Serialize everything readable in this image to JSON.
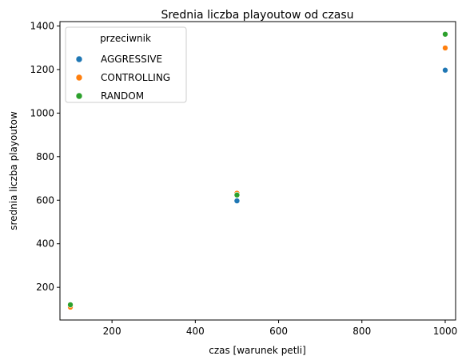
{
  "chart_data": {
    "type": "scatter",
    "title": "Srednia liczba playoutow od czasu",
    "xlabel": "czas [warunek petli]",
    "ylabel": "srednia liczba playoutow",
    "xlim": [
      75,
      1025
    ],
    "ylim": [
      50,
      1420
    ],
    "xticks": [
      200,
      400,
      600,
      800,
      1000
    ],
    "yticks": [
      200,
      400,
      600,
      800,
      1000,
      1200,
      1400
    ],
    "grid": false,
    "legend": {
      "title": "przeciwnik",
      "placement": "top-left"
    },
    "series": [
      {
        "name": "AGGRESSIVE",
        "color": "#1f77b4",
        "points": [
          {
            "x": 100,
            "y": 118
          },
          {
            "x": 500,
            "y": 597
          },
          {
            "x": 1000,
            "y": 1197
          }
        ]
      },
      {
        "name": "CONTROLLING",
        "color": "#ff7f0e",
        "points": [
          {
            "x": 100,
            "y": 109
          },
          {
            "x": 500,
            "y": 632
          },
          {
            "x": 1000,
            "y": 1299
          }
        ]
      },
      {
        "name": "RANDOM",
        "color": "#2ca02c",
        "points": [
          {
            "x": 100,
            "y": 120
          },
          {
            "x": 500,
            "y": 624
          },
          {
            "x": 1000,
            "y": 1362
          }
        ]
      }
    ]
  }
}
